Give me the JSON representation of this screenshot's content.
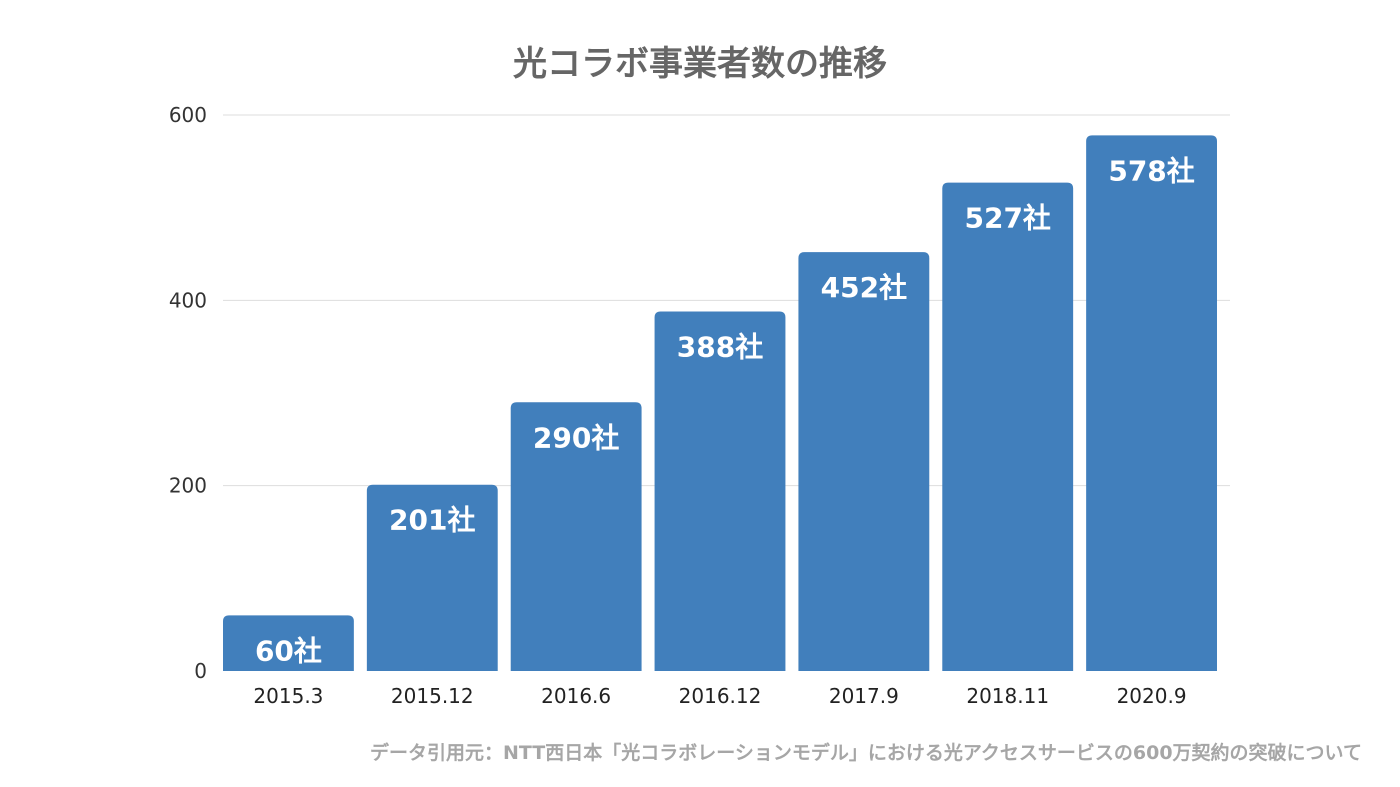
{
  "chart_data": {
    "type": "bar",
    "title": "光コラボ事業者数の推移",
    "categories": [
      "2015.3",
      "2015.12",
      "2016.6",
      "2016.12",
      "2017.9",
      "2018.11",
      "2020.9"
    ],
    "values": [
      60,
      201,
      290,
      388,
      452,
      527,
      578
    ],
    "data_labels": [
      "60社",
      "201社",
      "290社",
      "388社",
      "452社",
      "527社",
      "578社"
    ],
    "y_ticks": [
      "0",
      "200",
      "400",
      "600"
    ],
    "ylim": [
      0,
      600
    ],
    "xlabel": "",
    "ylabel": "",
    "grid": true,
    "legend": "none",
    "bar_color": "#417fbc",
    "grid_color": "#dddddd"
  },
  "source_note": "データ引用元：NTT西日本「光コラボレーションモデル」における光アクセスサービスの600万契約の突破について"
}
